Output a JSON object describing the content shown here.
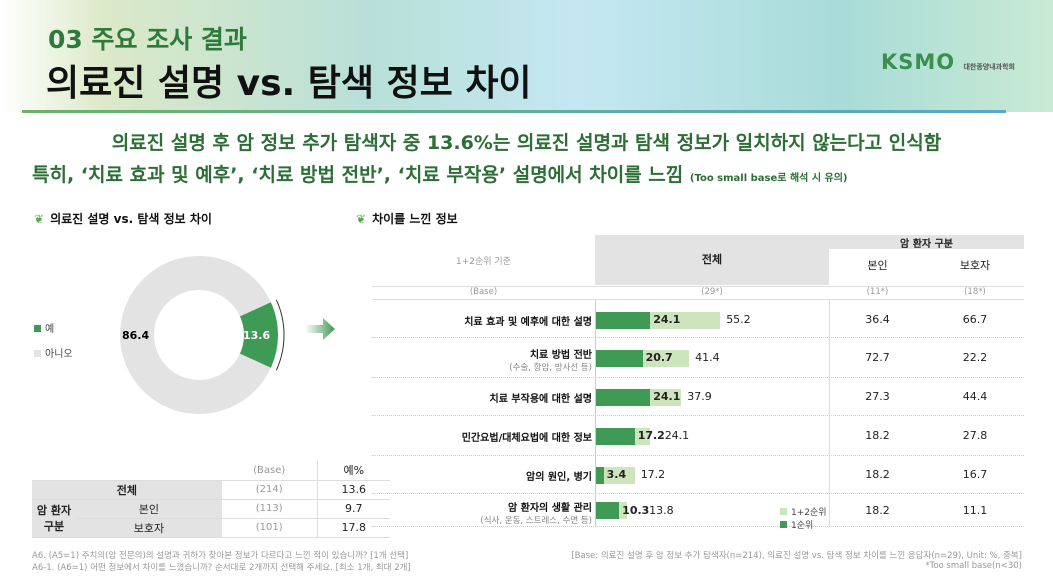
{
  "header": {
    "section": "03 주요 조사 결과",
    "title": "의료진 설명 vs. 탐색 정보 차이",
    "logo": "KSMO",
    "logo_sub": "대한종양내과학회"
  },
  "headline": {
    "line1": "의료진 설명 후 암 정보 추가 탐색자 중 13.6%는 의료진 설명과 탐색 정보가 일치하지 않는다고 인식함",
    "line2": "특히, ‘치료 효과 및 예후’, ‘치료 방법 전반’, ‘치료 부작용’ 설명에서 차이를 느낌",
    "line2_note": "(Too small base로 해석 시 유의)"
  },
  "colors": {
    "dark_green": "#3e9a55",
    "light_green": "#cde5bd",
    "gray": "#e3e3e3"
  },
  "chart_data": [
    {
      "type": "pie",
      "title": "의료진 설명 vs. 탐색 정보 차이",
      "donut": true,
      "categories": [
        "예",
        "아니오"
      ],
      "values": [
        13.6,
        86.4
      ],
      "labels": [
        "13.6",
        "86.4"
      ],
      "legend": "left"
    },
    {
      "type": "bar",
      "orientation": "horizontal",
      "title": "차이를 느낀 정보",
      "subtitle": "1+2순위 기준",
      "categories": [
        "치료 효과 및 예후에 대한 설명",
        "치료 방법 전반",
        "치료 부작용에 대한 설명",
        "민간요법/대체요법에 대한 정보",
        "암의 원인, 병기",
        "암 환자의 생활 관리"
      ],
      "category_notes": [
        "",
        "(수술, 항암, 방사선 등)",
        "",
        "",
        "",
        "(식사, 운동, 스트레스, 수면 등)"
      ],
      "series": [
        {
          "name": "1순위",
          "values": [
            24.1,
            20.7,
            24.1,
            17.2,
            3.4,
            10.3
          ]
        },
        {
          "name": "1+2순위",
          "values": [
            55.2,
            41.4,
            37.9,
            24.1,
            17.2,
            13.8
          ]
        }
      ],
      "legend": "bottom-right"
    }
  ],
  "left_table": {
    "headers": [
      "(Base)",
      "예%"
    ],
    "rows": [
      {
        "label": "전체",
        "base": "(214)",
        "value": "13.6"
      },
      {
        "group": "암 환자 구분",
        "label": "본인",
        "base": "(113)",
        "value": "9.7"
      },
      {
        "label": "보호자",
        "base": "(101)",
        "value": "17.8"
      }
    ]
  },
  "right_table": {
    "criteria": "1+2순위 기준",
    "col_total": "전체",
    "group": "암 환자 구분",
    "col_self": "본인",
    "col_guardian": "보호자",
    "base_label": "(Base)",
    "base_total": "(29*)",
    "base_self": "(11*)",
    "base_guardian": "(18*)",
    "self": [
      "36.4",
      "72.7",
      "27.3",
      "18.2",
      "18.2",
      "18.2"
    ],
    "guardian": [
      "66.7",
      "22.2",
      "44.4",
      "27.8",
      "16.7",
      "11.1"
    ]
  },
  "footnotes": {
    "q1": "A6. (A5=1) 주치의(암 전문의)의 설명과 귀하가 찾아본 정보가 다르다고 느낀 적이 있습니까? [1개 선택]",
    "q2": "A6-1. (A6=1) 어떤 정보에서 차이를 느꼈습니까? 순서대로 2개까지 선택해 주세요. [최소 1개, 최대 2개]",
    "base": "[Base: 의료진 설명 후 암 정보 추가 탐색자(n=214), 의료진 설명 vs. 탐색 정보 차이를 느낀 응답자(n=29), Unit: %, 중복]",
    "small": "*Too small base(n<30)"
  }
}
